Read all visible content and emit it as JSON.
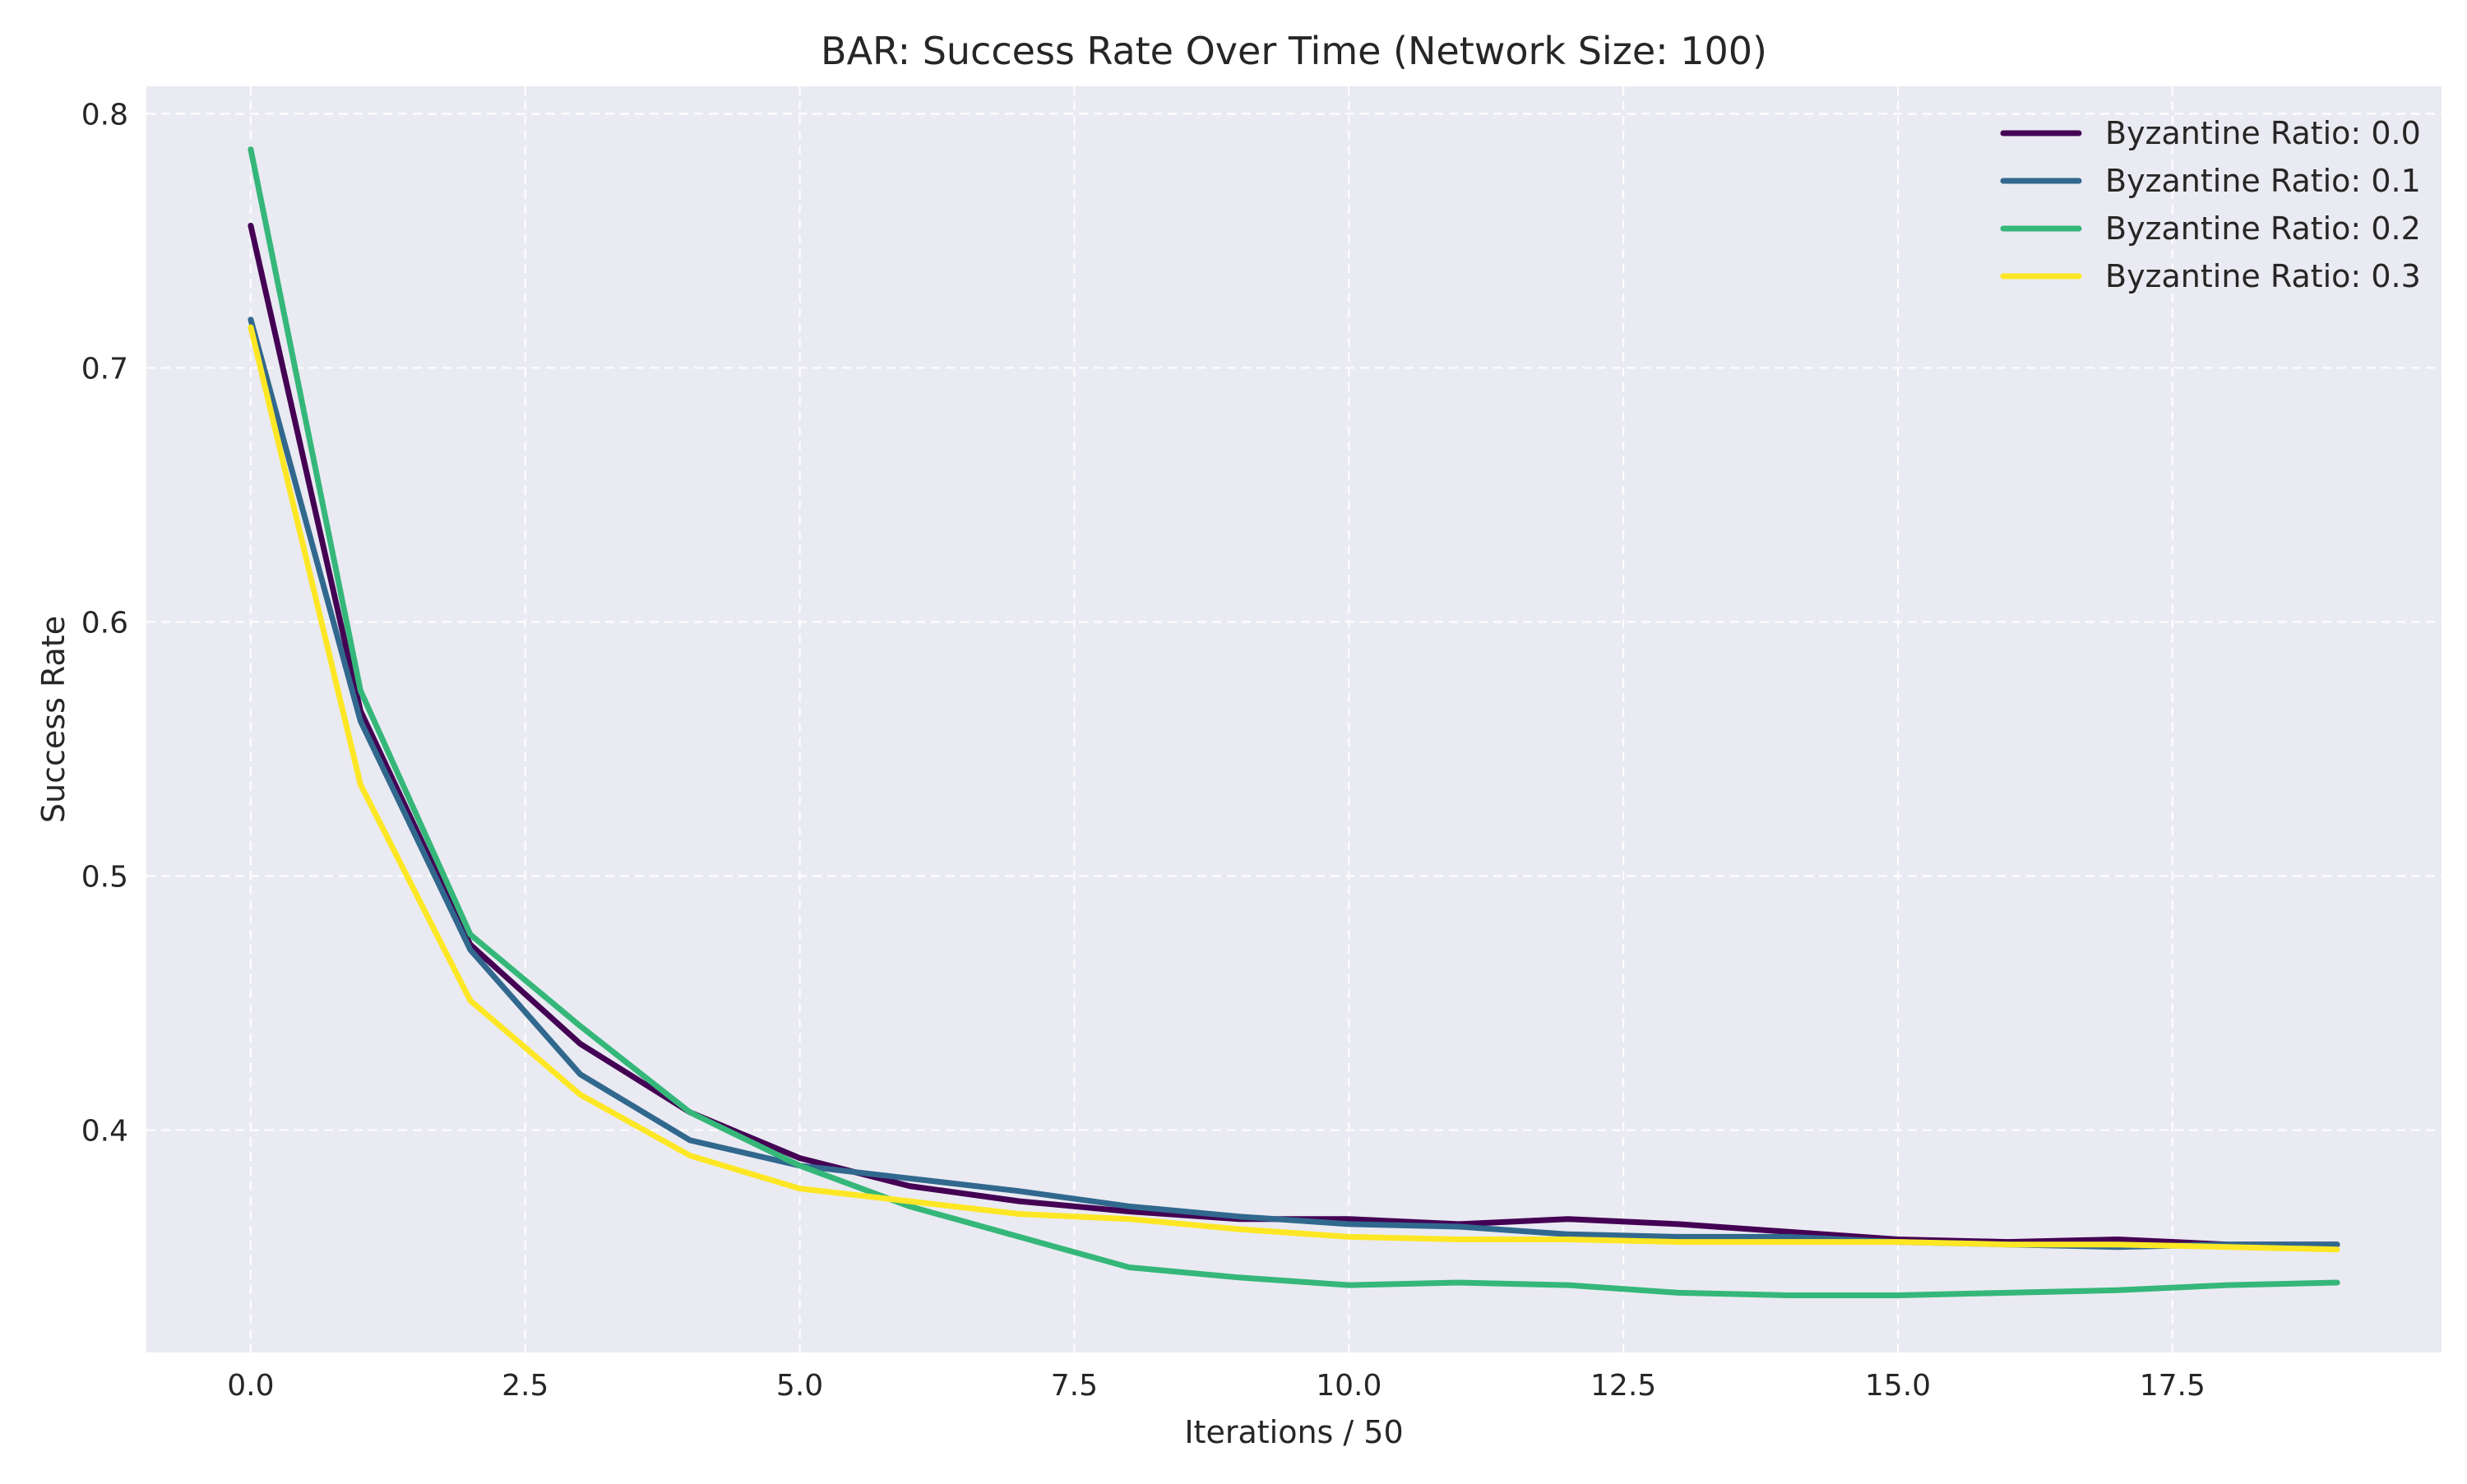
{
  "chart_data": {
    "type": "line",
    "title": "BAR: Success Rate Over Time (Network Size: 100)",
    "xlabel": "Iterations / 50",
    "ylabel": "Success Rate",
    "xlim": [
      -0.95,
      19.95
    ],
    "ylim": [
      0.3125,
      0.8108
    ],
    "xticks": [
      0.0,
      2.5,
      5.0,
      7.5,
      10.0,
      12.5,
      15.0,
      17.5
    ],
    "xtick_labels": [
      "0.0",
      "2.5",
      "5.0",
      "7.5",
      "10.0",
      "12.5",
      "15.0",
      "17.5"
    ],
    "yticks": [
      0.4,
      0.5,
      0.6,
      0.7,
      0.8
    ],
    "ytick_labels": [
      "0.4",
      "0.5",
      "0.6",
      "0.7",
      "0.8"
    ],
    "grid": true,
    "legend_position": "top-right",
    "background_color": "#eaeaf2",
    "x": [
      0,
      1,
      2,
      3,
      4,
      5,
      6,
      7,
      8,
      9,
      10,
      11,
      12,
      13,
      14,
      15,
      16,
      17,
      18,
      19
    ],
    "series": [
      {
        "name": "Byzantine Ratio: 0.0",
        "color": "#440154",
        "values": [
          0.756,
          0.565,
          0.473,
          0.434,
          0.407,
          0.389,
          0.378,
          0.372,
          0.368,
          0.365,
          0.365,
          0.363,
          0.365,
          0.363,
          0.36,
          0.357,
          0.356,
          0.357,
          0.355,
          0.355
        ]
      },
      {
        "name": "Byzantine Ratio: 0.1",
        "color": "#31688e",
        "values": [
          0.719,
          0.561,
          0.471,
          0.422,
          0.396,
          0.386,
          0.381,
          0.376,
          0.37,
          0.366,
          0.363,
          0.362,
          0.359,
          0.358,
          0.358,
          0.356,
          0.355,
          0.354,
          0.355,
          0.355
        ]
      },
      {
        "name": "Byzantine Ratio: 0.2",
        "color": "#35b779",
        "values": [
          0.786,
          0.573,
          0.477,
          0.441,
          0.407,
          0.386,
          0.37,
          0.358,
          0.346,
          0.342,
          0.339,
          0.34,
          0.339,
          0.336,
          0.335,
          0.335,
          0.336,
          0.337,
          0.339,
          0.34
        ]
      },
      {
        "name": "Byzantine Ratio: 0.3",
        "color": "#fde725",
        "values": [
          0.716,
          0.536,
          0.451,
          0.414,
          0.39,
          0.377,
          0.372,
          0.367,
          0.365,
          0.361,
          0.358,
          0.357,
          0.357,
          0.356,
          0.356,
          0.356,
          0.355,
          0.355,
          0.354,
          0.353
        ]
      }
    ]
  }
}
